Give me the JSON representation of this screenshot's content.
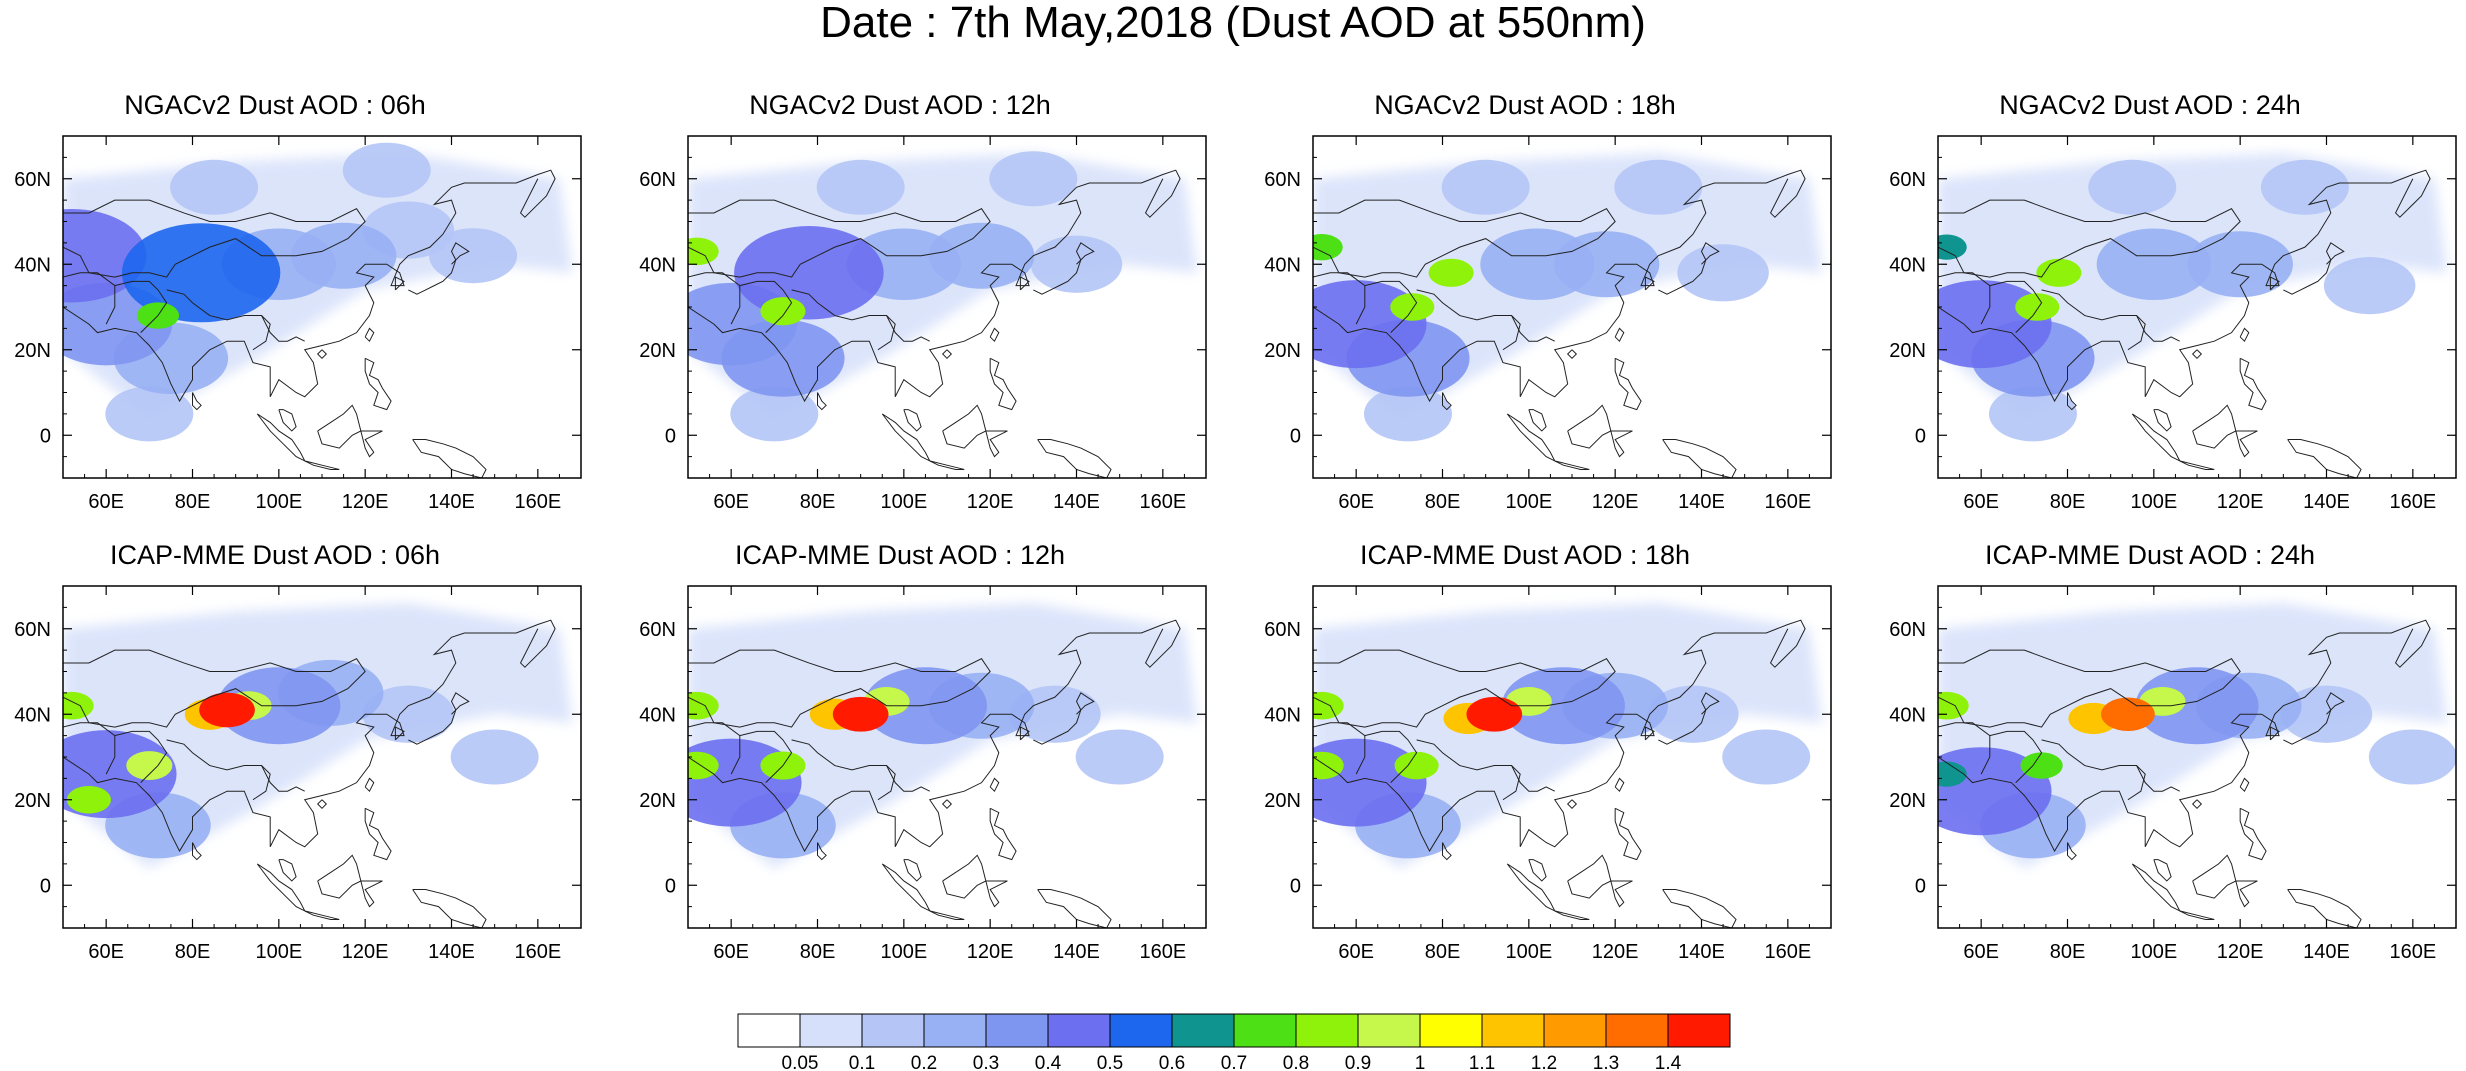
{
  "title": "Date : 7th May,2018 (Dust AOD at 550nm)",
  "chart_data": {
    "type": "heatmap",
    "title": "Date : 7th May,2018 (Dust AOD at 550nm)",
    "description_variable": "Dust AOD at 550nm",
    "x_axis": {
      "ticks": [
        60,
        80,
        100,
        120,
        140,
        160
      ],
      "tick_labels": [
        "60E",
        "80E",
        "100E",
        "120E",
        "140E",
        "160E"
      ],
      "range": [
        50,
        170
      ]
    },
    "y_axis": {
      "ticks": [
        0,
        20,
        40,
        60
      ],
      "tick_labels": [
        "0",
        "20N",
        "40N",
        "60N"
      ],
      "range": [
        -10,
        70
      ]
    },
    "grid": false,
    "colorbar": {
      "placement": "bottom",
      "levels": [
        0.05,
        0.1,
        0.2,
        0.3,
        0.4,
        0.5,
        0.6,
        0.7,
        0.8,
        0.9,
        1,
        1.1,
        1.2,
        1.3,
        1.4
      ],
      "labels": [
        "0.05",
        "0.1",
        "0.2",
        "0.3",
        "0.4",
        "0.5",
        "0.6",
        "0.7",
        "0.8",
        "0.9",
        "1",
        "1.1",
        "1.2",
        "1.3",
        "1.4"
      ],
      "colors": [
        "#ffffff",
        "#d6e0fa",
        "#b4c5f6",
        "#98b0f4",
        "#7f96f1",
        "#6b6ff0",
        "#1d66ee",
        "#0f9490",
        "#4de014",
        "#8ff20a",
        "#c5f84a",
        "#ffff00",
        "#ffc400",
        "#ff9a00",
        "#ff6c00",
        "#ff1a00"
      ]
    },
    "panels": [
      {
        "title": "NGACv2 Dust AOD : 06h",
        "model": "NGACv2",
        "hour": "06h",
        "features": [
          {
            "lon": 72,
            "lat": 28,
            "value": 0.7
          },
          {
            "lon": 82,
            "lat": 38,
            "value": 0.5
          },
          {
            "lon": 60,
            "lat": 26,
            "value": 0.35
          },
          {
            "lon": 52,
            "lat": 42,
            "value": 0.45
          },
          {
            "lon": 75,
            "lat": 18,
            "value": 0.25
          },
          {
            "lon": 100,
            "lat": 40,
            "value": 0.25
          },
          {
            "lon": 115,
            "lat": 42,
            "value": 0.2
          },
          {
            "lon": 130,
            "lat": 48,
            "value": 0.12
          },
          {
            "lon": 145,
            "lat": 42,
            "value": 0.1
          },
          {
            "lon": 85,
            "lat": 58,
            "value": 0.1
          },
          {
            "lon": 125,
            "lat": 62,
            "value": 0.1
          },
          {
            "lon": 70,
            "lat": 5,
            "value": 0.1
          }
        ]
      },
      {
        "title": "NGACv2 Dust AOD : 12h",
        "model": "NGACv2",
        "hour": "12h",
        "features": [
          {
            "lon": 72,
            "lat": 29,
            "value": 0.85
          },
          {
            "lon": 52,
            "lat": 43,
            "value": 0.8
          },
          {
            "lon": 78,
            "lat": 38,
            "value": 0.45
          },
          {
            "lon": 60,
            "lat": 26,
            "value": 0.35
          },
          {
            "lon": 72,
            "lat": 18,
            "value": 0.3
          },
          {
            "lon": 100,
            "lat": 40,
            "value": 0.25
          },
          {
            "lon": 118,
            "lat": 42,
            "value": 0.2
          },
          {
            "lon": 140,
            "lat": 40,
            "value": 0.12
          },
          {
            "lon": 90,
            "lat": 58,
            "value": 0.1
          },
          {
            "lon": 130,
            "lat": 60,
            "value": 0.1
          },
          {
            "lon": 70,
            "lat": 5,
            "value": 0.1
          }
        ]
      },
      {
        "title": "NGACv2 Dust AOD : 18h",
        "model": "NGACv2",
        "hour": "18h",
        "features": [
          {
            "lon": 73,
            "lat": 30,
            "value": 0.8
          },
          {
            "lon": 82,
            "lat": 38,
            "value": 0.85
          },
          {
            "lon": 52,
            "lat": 44,
            "value": 0.7
          },
          {
            "lon": 60,
            "lat": 26,
            "value": 0.4
          },
          {
            "lon": 72,
            "lat": 18,
            "value": 0.3
          },
          {
            "lon": 102,
            "lat": 40,
            "value": 0.25
          },
          {
            "lon": 118,
            "lat": 40,
            "value": 0.2
          },
          {
            "lon": 145,
            "lat": 38,
            "value": 0.12
          },
          {
            "lon": 90,
            "lat": 58,
            "value": 0.1
          },
          {
            "lon": 130,
            "lat": 58,
            "value": 0.1
          },
          {
            "lon": 72,
            "lat": 5,
            "value": 0.1
          }
        ]
      },
      {
        "title": "NGACv2 Dust AOD : 24h",
        "model": "NGACv2",
        "hour": "24h",
        "features": [
          {
            "lon": 73,
            "lat": 30,
            "value": 0.8
          },
          {
            "lon": 78,
            "lat": 38,
            "value": 0.85
          },
          {
            "lon": 52,
            "lat": 44,
            "value": 0.6
          },
          {
            "lon": 60,
            "lat": 26,
            "value": 0.4
          },
          {
            "lon": 72,
            "lat": 18,
            "value": 0.3
          },
          {
            "lon": 100,
            "lat": 40,
            "value": 0.25
          },
          {
            "lon": 120,
            "lat": 40,
            "value": 0.2
          },
          {
            "lon": 150,
            "lat": 35,
            "value": 0.12
          },
          {
            "lon": 95,
            "lat": 58,
            "value": 0.1
          },
          {
            "lon": 135,
            "lat": 58,
            "value": 0.1
          },
          {
            "lon": 72,
            "lat": 5,
            "value": 0.1
          }
        ]
      },
      {
        "title": "ICAP-MME Dust AOD : 06h",
        "model": "ICAP-MME",
        "hour": "06h",
        "features": [
          {
            "lon": 88,
            "lat": 41,
            "value": 1.4
          },
          {
            "lon": 84,
            "lat": 40,
            "value": 1.1
          },
          {
            "lon": 93,
            "lat": 42,
            "value": 0.9
          },
          {
            "lon": 70,
            "lat": 28,
            "value": 0.9
          },
          {
            "lon": 52,
            "lat": 42,
            "value": 0.8
          },
          {
            "lon": 56,
            "lat": 20,
            "value": 0.8
          },
          {
            "lon": 60,
            "lat": 26,
            "value": 0.4
          },
          {
            "lon": 100,
            "lat": 42,
            "value": 0.3
          },
          {
            "lon": 112,
            "lat": 45,
            "value": 0.2
          },
          {
            "lon": 72,
            "lat": 14,
            "value": 0.2
          },
          {
            "lon": 130,
            "lat": 40,
            "value": 0.12
          },
          {
            "lon": 150,
            "lat": 30,
            "value": 0.1
          }
        ]
      },
      {
        "title": "ICAP-MME Dust AOD : 12h",
        "model": "ICAP-MME",
        "hour": "12h",
        "features": [
          {
            "lon": 90,
            "lat": 40,
            "value": 1.4
          },
          {
            "lon": 84,
            "lat": 40,
            "value": 1.1
          },
          {
            "lon": 96,
            "lat": 43,
            "value": 0.9
          },
          {
            "lon": 72,
            "lat": 28,
            "value": 0.85
          },
          {
            "lon": 52,
            "lat": 42,
            "value": 0.8
          },
          {
            "lon": 52,
            "lat": 28,
            "value": 0.8
          },
          {
            "lon": 60,
            "lat": 24,
            "value": 0.4
          },
          {
            "lon": 105,
            "lat": 42,
            "value": 0.3
          },
          {
            "lon": 118,
            "lat": 42,
            "value": 0.2
          },
          {
            "lon": 72,
            "lat": 14,
            "value": 0.2
          },
          {
            "lon": 135,
            "lat": 40,
            "value": 0.12
          },
          {
            "lon": 150,
            "lat": 30,
            "value": 0.1
          }
        ]
      },
      {
        "title": "ICAP-MME Dust AOD : 18h",
        "model": "ICAP-MME",
        "hour": "18h",
        "features": [
          {
            "lon": 92,
            "lat": 40,
            "value": 1.4
          },
          {
            "lon": 86,
            "lat": 39,
            "value": 1.1
          },
          {
            "lon": 100,
            "lat": 43,
            "value": 0.9
          },
          {
            "lon": 74,
            "lat": 28,
            "value": 0.8
          },
          {
            "lon": 52,
            "lat": 42,
            "value": 0.8
          },
          {
            "lon": 52,
            "lat": 28,
            "value": 0.8
          },
          {
            "lon": 60,
            "lat": 24,
            "value": 0.4
          },
          {
            "lon": 108,
            "lat": 42,
            "value": 0.3
          },
          {
            "lon": 120,
            "lat": 42,
            "value": 0.2
          },
          {
            "lon": 72,
            "lat": 14,
            "value": 0.2
          },
          {
            "lon": 138,
            "lat": 40,
            "value": 0.12
          },
          {
            "lon": 155,
            "lat": 30,
            "value": 0.1
          }
        ]
      },
      {
        "title": "ICAP-MME Dust AOD : 24h",
        "model": "ICAP-MME",
        "hour": "24h",
        "features": [
          {
            "lon": 94,
            "lat": 40,
            "value": 1.3
          },
          {
            "lon": 86,
            "lat": 39,
            "value": 1.1
          },
          {
            "lon": 102,
            "lat": 43,
            "value": 0.9
          },
          {
            "lon": 74,
            "lat": 28,
            "value": 0.7
          },
          {
            "lon": 52,
            "lat": 42,
            "value": 0.8
          },
          {
            "lon": 52,
            "lat": 26,
            "value": 0.6
          },
          {
            "lon": 60,
            "lat": 22,
            "value": 0.4
          },
          {
            "lon": 110,
            "lat": 42,
            "value": 0.3
          },
          {
            "lon": 122,
            "lat": 42,
            "value": 0.2
          },
          {
            "lon": 72,
            "lat": 14,
            "value": 0.2
          },
          {
            "lon": 140,
            "lat": 40,
            "value": 0.12
          },
          {
            "lon": 160,
            "lat": 30,
            "value": 0.1
          }
        ]
      }
    ]
  }
}
